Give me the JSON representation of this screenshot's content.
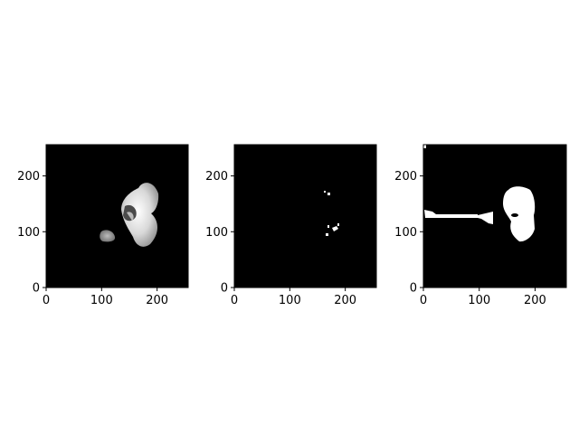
{
  "chart_data": [
    {
      "type": "image",
      "content": "grayscale kidney CT slice",
      "xlim": [
        0,
        256
      ],
      "ylim": [
        0,
        256
      ],
      "origin": "lower",
      "xticks": [
        0,
        100,
        200
      ],
      "yticks": [
        0,
        100,
        200
      ],
      "colormap": "gray"
    },
    {
      "type": "image",
      "content": "sparse white spots on black",
      "xlim": [
        0,
        256
      ],
      "ylim": [
        0,
        256
      ],
      "origin": "lower",
      "xticks": [
        0,
        100,
        200
      ],
      "yticks": [
        0,
        100,
        200
      ],
      "colormap": "gray"
    },
    {
      "type": "image",
      "content": "binary mask, white region on black",
      "xlim": [
        0,
        256
      ],
      "ylim": [
        0,
        256
      ],
      "origin": "lower",
      "xticks": [
        0,
        100,
        200
      ],
      "yticks": [
        0,
        100,
        200
      ],
      "colormap": "gray"
    }
  ],
  "colors": {
    "background": "#000000",
    "foreground": "#ffffff",
    "axes": "#000000"
  }
}
